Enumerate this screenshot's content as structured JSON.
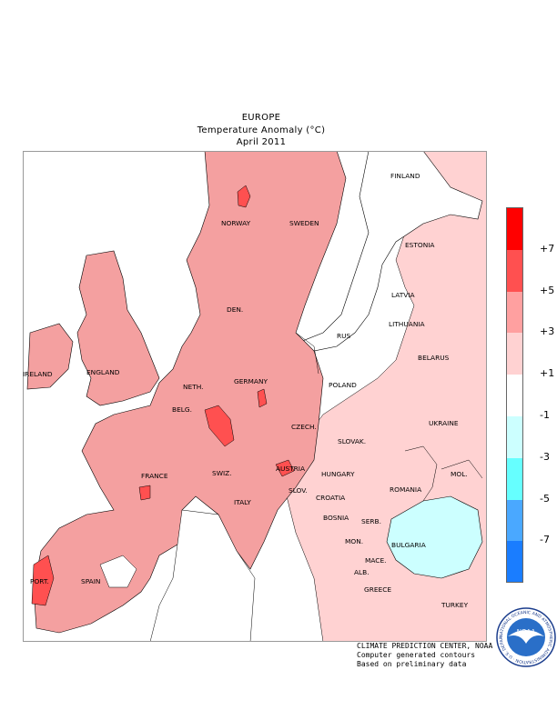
{
  "title": {
    "region": "EUROPE",
    "quantity": "Temperature Anomaly (°C)",
    "period": "April 2011"
  },
  "legend": {
    "colors": [
      "#ff0000",
      "#ff5050",
      "#ffa0a0",
      "#ffd2d2",
      "#ffffff",
      "#ccffff",
      "#66ffff",
      "#4aa8ff",
      "#1a7dff"
    ],
    "ticks": [
      "+7",
      "+5",
      "+3",
      "+1",
      "-1",
      "-3",
      "-5",
      "-7"
    ]
  },
  "map": {
    "country_labels": [
      "FINLAND",
      "NORWAY",
      "SWEDEN",
      "ESTONIA",
      "LATVIA",
      "DEN.",
      "LITHUANIA",
      "RUS",
      "IRELAND",
      "ENGLAND",
      "BELARUS",
      "NETH.",
      "GERMANY",
      "POLAND",
      "BELG.",
      "UKRAINE",
      "CZECH.",
      "SLOVAK.",
      "FRANCE",
      "AUSTRIA",
      "SWIZ.",
      "HUNGARY",
      "MOL.",
      "SLOV.",
      "ROMANIA",
      "CROATIA",
      "ITALY",
      "BOSNIA",
      "SERB.",
      "MON.",
      "BULGARIA",
      "MACE.",
      "PORT.",
      "SPAIN",
      "ALB.",
      "GREECE",
      "TURKEY"
    ],
    "anomaly_regions": [
      {
        "area": "Scandinavia",
        "class": "+3 to +5"
      },
      {
        "area": "Western & Central Europe",
        "class": "+3 to +5"
      },
      {
        "area": "Eastern Europe",
        "class": "+1 to +3"
      },
      {
        "area": "Western Black Sea / Bulgaria",
        "class": "-1 to -3"
      },
      {
        "area": "Portugal, Rhineland, Austria, Norway interior",
        "class": "+5 to +7"
      }
    ]
  },
  "credits": {
    "line1": "CLIMATE PREDICTION CENTER, NOAA",
    "line2": "Computer generated contours",
    "line3": "Based on preliminary data"
  },
  "logo": {
    "text": "NOAA",
    "ring_text": "NATIONAL OCEANIC AND ATMOSPHERIC ADMINISTRATION · U.S. DEPARTMENT OF COMMERCE",
    "icon": "noaa-seal-icon"
  }
}
